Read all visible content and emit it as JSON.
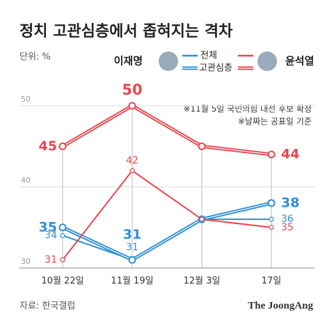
{
  "chart_data": {
    "type": "line",
    "title": "정치 고관심층에서 좁혀지는 격차",
    "unit": "단위: %",
    "notes": [
      "※11월 5일 국민의힘 대선 후보 확정",
      "※날짜는 공표일 기준"
    ],
    "source": "자료: 한국갤럽",
    "credit": "The JoongAng",
    "categories": [
      "10월 22일",
      "11월 19일",
      "12월 3일",
      "17일"
    ],
    "series": [
      {
        "candidate": "이재명",
        "name": "전체",
        "style": "thin",
        "color": "#2f8fd6",
        "values": [
          34,
          31,
          36,
          36
        ],
        "value_labels": [
          "34",
          "31",
          null,
          "36"
        ]
      },
      {
        "candidate": "이재명",
        "name": "고관심층",
        "style": "thick",
        "color": "#2f8fd6",
        "values": [
          35,
          31,
          36,
          38
        ],
        "value_labels": [
          "35",
          "31",
          null,
          "38"
        ]
      },
      {
        "candidate": "윤석열",
        "name": "전체",
        "style": "thin",
        "color": "#e8464e",
        "values": [
          31,
          42,
          36,
          35
        ],
        "value_labels": [
          "31",
          "42",
          null,
          "35"
        ]
      },
      {
        "candidate": "윤석열",
        "name": "고관심층",
        "style": "thick",
        "color": "#e8464e",
        "values": [
          45,
          50,
          45,
          44
        ],
        "value_labels": [
          "45",
          "50",
          null,
          "44"
        ]
      }
    ],
    "ylim": [
      30,
      50
    ],
    "yticks": [
      30,
      40,
      50
    ],
    "grid": true
  }
}
